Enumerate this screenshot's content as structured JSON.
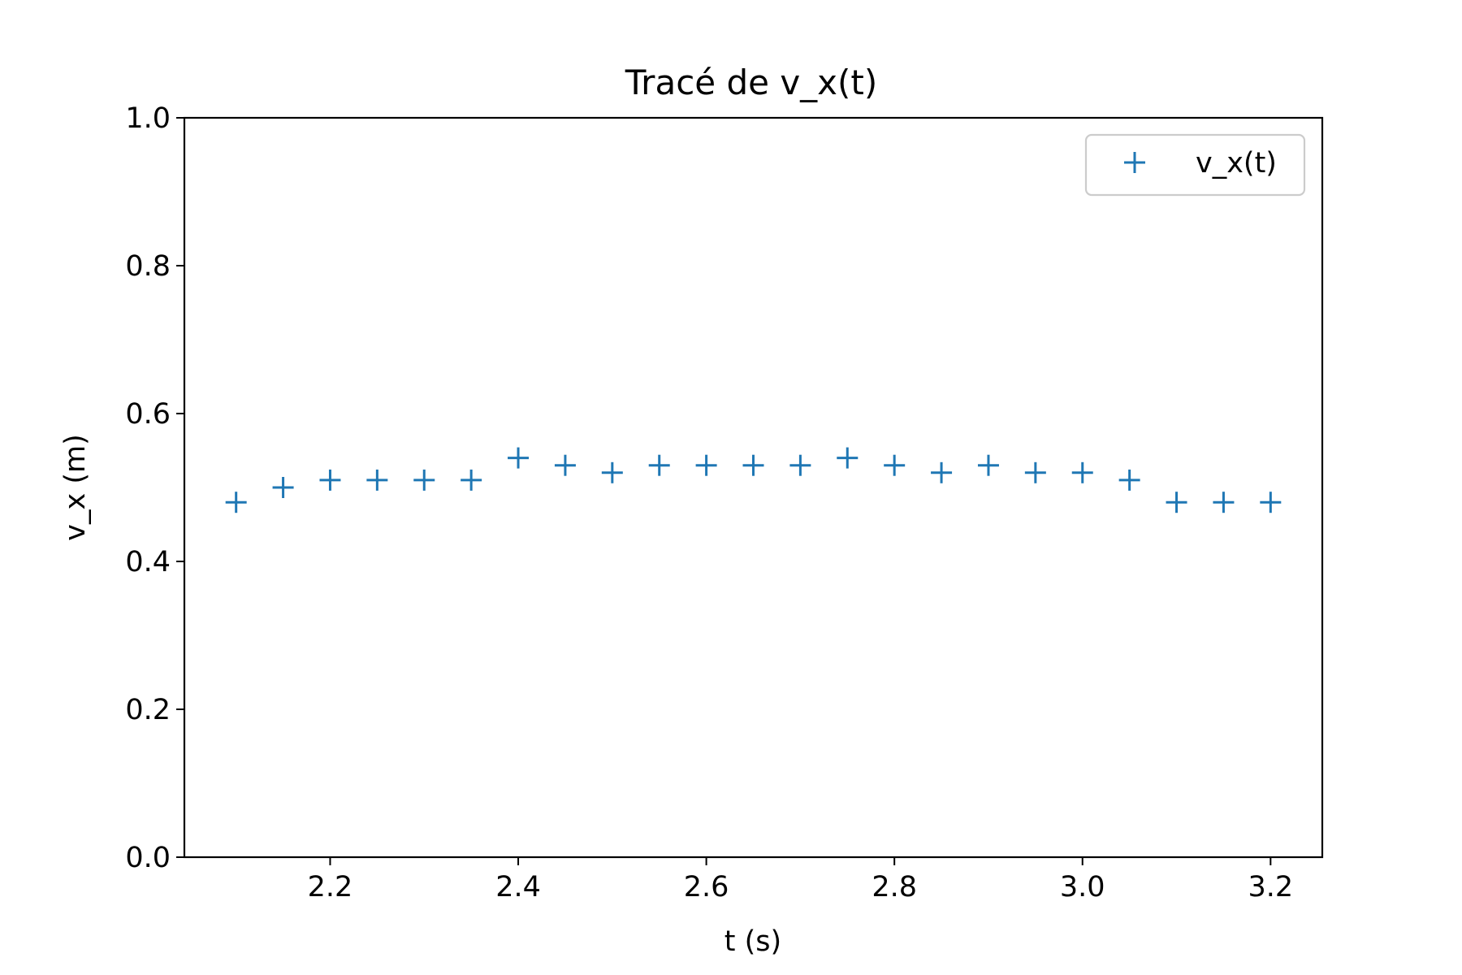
{
  "chart_data": {
    "type": "scatter",
    "title": "Tracé de v_x(t)",
    "xlabel": "t (s)",
    "ylabel": "v_x (m)",
    "xlim": [
      2.045,
      3.255
    ],
    "ylim": [
      0.0,
      1.0
    ],
    "xticks": [
      "2.2",
      "2.4",
      "2.6",
      "2.8",
      "3.0",
      "3.2"
    ],
    "yticks": [
      "0.0",
      "0.2",
      "0.4",
      "0.6",
      "0.8",
      "1.0"
    ],
    "grid": false,
    "legend_position": "top-right",
    "marker": "+",
    "color": "#1f77b4",
    "series": [
      {
        "name": "v_x(t)",
        "x": [
          2.1,
          2.15,
          2.2,
          2.25,
          2.3,
          2.35,
          2.4,
          2.45,
          2.5,
          2.55,
          2.6,
          2.65,
          2.7,
          2.75,
          2.8,
          2.85,
          2.9,
          2.95,
          3.0,
          3.05,
          3.1,
          3.15,
          3.2
        ],
        "y": [
          0.48,
          0.5,
          0.51,
          0.51,
          0.51,
          0.51,
          0.54,
          0.53,
          0.52,
          0.53,
          0.53,
          0.53,
          0.53,
          0.54,
          0.53,
          0.52,
          0.53,
          0.52,
          0.52,
          0.51,
          0.48,
          0.48,
          0.48
        ]
      }
    ]
  }
}
